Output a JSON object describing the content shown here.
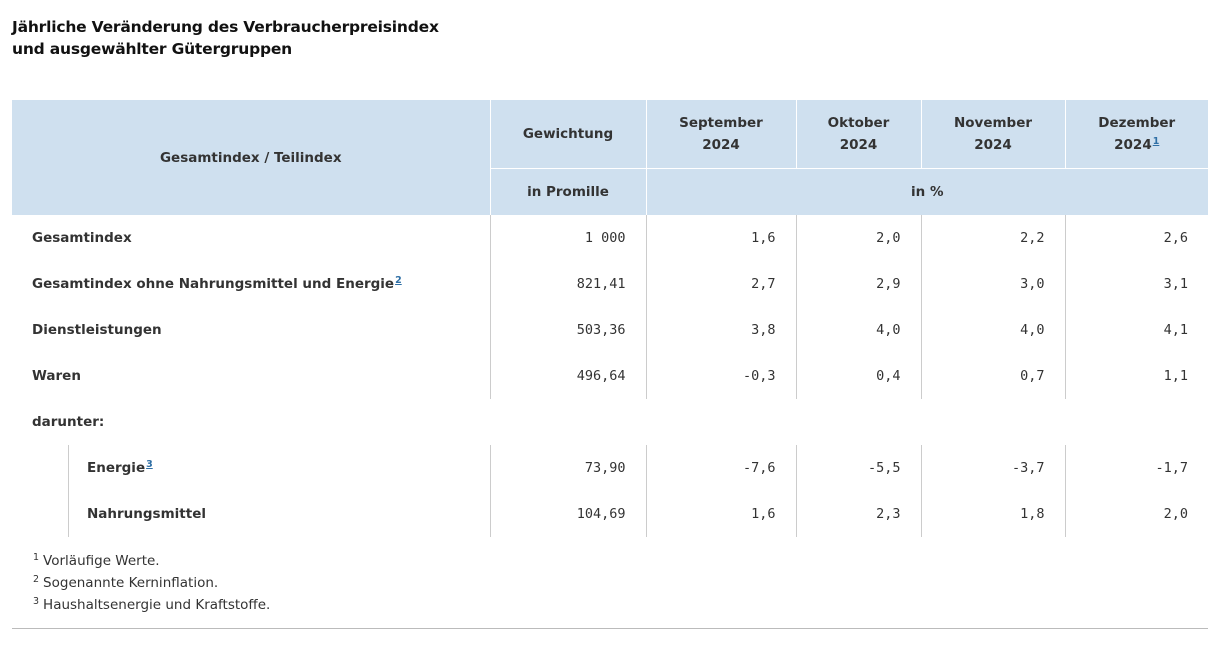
{
  "title": {
    "line1": "Jährliche Veränderung des Verbraucherpreisindex",
    "line2": "und ausgewählter Gütergruppen"
  },
  "header": {
    "col_index": "Gesamtindex / Teilindex",
    "col_weight": "Gewichtung",
    "months": [
      {
        "name": "September",
        "year": "2024",
        "footnote": ""
      },
      {
        "name": "Oktober",
        "year": "2024",
        "footnote": ""
      },
      {
        "name": "November",
        "year": "2024",
        "footnote": ""
      },
      {
        "name": "Dezember",
        "year": "2024",
        "footnote": "1"
      }
    ],
    "unit_weight": "in Promille",
    "unit_change": "in %"
  },
  "rows": [
    {
      "label": "Gesamtindex",
      "footnote": "",
      "weight": "1 000",
      "values": [
        "1,6",
        "2,0",
        "2,2",
        "2,6"
      ]
    },
    {
      "label": "Gesamtindex ohne Nahrungsmittel und Energie",
      "footnote": "2",
      "weight": "821,41",
      "values": [
        "2,7",
        "2,9",
        "3,0",
        "3,1"
      ]
    },
    {
      "label": "Dienstleistungen",
      "footnote": "",
      "weight": "503,36",
      "values": [
        "3,8",
        "4,0",
        "4,0",
        "4,1"
      ]
    },
    {
      "label": "Waren",
      "footnote": "",
      "weight": "496,64",
      "values": [
        "-0,3",
        "0,4",
        "0,7",
        "1,1"
      ]
    }
  ],
  "darunter_label": "darunter:",
  "sub_rows": [
    {
      "label": "Energie",
      "footnote": "3",
      "weight": "73,90",
      "values": [
        "-7,6",
        "-5,5",
        "-3,7",
        "-1,7"
      ]
    },
    {
      "label": "Nahrungsmittel",
      "footnote": "",
      "weight": "104,69",
      "values": [
        "1,6",
        "2,3",
        "1,8",
        "2,0"
      ]
    }
  ],
  "footnotes": [
    {
      "mark": "1",
      "text": "Vorläufige Werte."
    },
    {
      "mark": "2",
      "text": "Sogenannte Kerninflation."
    },
    {
      "mark": "3",
      "text": "Haushaltsenergie und Kraftstoffe."
    }
  ]
}
